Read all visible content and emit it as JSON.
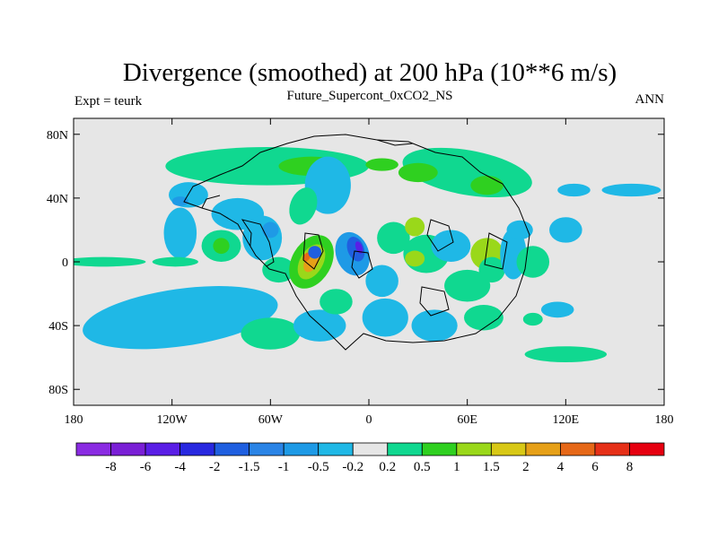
{
  "chart_data": {
    "type": "heatmap",
    "title": "Divergence (smoothed) at 200 hPa (10**6 m/s)",
    "subtitle": "Future_Supercont_0xCO2_NS",
    "left_label": "Expt = teurk",
    "right_label": "ANN",
    "xlim": [
      -180,
      180
    ],
    "ylim": [
      -90,
      90
    ],
    "x_ticks": [
      {
        "value": -180,
        "label": "180"
      },
      {
        "value": -120,
        "label": "120W"
      },
      {
        "value": -60,
        "label": "60W"
      },
      {
        "value": 0,
        "label": "0"
      },
      {
        "value": 60,
        "label": "60E"
      },
      {
        "value": 120,
        "label": "120E"
      },
      {
        "value": 180,
        "label": "180"
      }
    ],
    "y_ticks": [
      {
        "value": 80,
        "label": "80N"
      },
      {
        "value": 40,
        "label": "40N"
      },
      {
        "value": 0,
        "label": "0"
      },
      {
        "value": -40,
        "label": "40S"
      },
      {
        "value": -80,
        "label": "80S"
      }
    ],
    "colorbar": {
      "colors": [
        "#8a2be2",
        "#7a1fd6",
        "#5a1ee6",
        "#2828e0",
        "#1f5fe0",
        "#2a84e6",
        "#1e9ae6",
        "#1fb8e6",
        "#e6e6e6",
        "#10d890",
        "#2fd020",
        "#9ad81a",
        "#d8c816",
        "#e6a018",
        "#e66818",
        "#e63018",
        "#e60010"
      ],
      "labels": [
        "-8",
        "-6",
        "-4",
        "-2",
        "-1.5",
        "-1",
        "-0.5",
        "-0.2",
        "0.2",
        "0.5",
        "1",
        "1.5",
        "2",
        "4",
        "6",
        "8"
      ]
    },
    "features": [
      {
        "lon": -62,
        "lat": 60,
        "rx": 62,
        "ry": 12,
        "rot": 0,
        "level": 9
      },
      {
        "lon": -35,
        "lat": 60,
        "rx": 20,
        "ry": 6,
        "rot": 0,
        "level": 10
      },
      {
        "lon": 8,
        "lat": 61,
        "rx": 10,
        "ry": 4,
        "rot": 0,
        "level": 10
      },
      {
        "lon": 60,
        "lat": 56,
        "rx": 40,
        "ry": 14,
        "rot": 10,
        "level": 9
      },
      {
        "lon": 30,
        "lat": 56,
        "rx": 12,
        "ry": 6,
        "rot": 0,
        "level": 10
      },
      {
        "lon": 72,
        "lat": 48,
        "rx": 10,
        "ry": 6,
        "rot": 0,
        "level": 10
      },
      {
        "lon": -25,
        "lat": 48,
        "rx": 14,
        "ry": 18,
        "rot": 0,
        "level": 7
      },
      {
        "lon": -40,
        "lat": 35,
        "rx": 8,
        "ry": 12,
        "rot": 20,
        "level": 9
      },
      {
        "lon": -110,
        "lat": 42,
        "rx": 12,
        "ry": 8,
        "rot": 0,
        "level": 7
      },
      {
        "lon": -115,
        "lat": 38,
        "rx": 5,
        "ry": 3,
        "rot": 0,
        "level": 6
      },
      {
        "lon": -80,
        "lat": 30,
        "rx": 16,
        "ry": 10,
        "rot": 0,
        "level": 7
      },
      {
        "lon": -115,
        "lat": 18,
        "rx": 10,
        "ry": 16,
        "rot": 0,
        "level": 7
      },
      {
        "lon": -90,
        "lat": 10,
        "rx": 12,
        "ry": 10,
        "rot": 0,
        "level": 9
      },
      {
        "lon": -90,
        "lat": 10,
        "rx": 5,
        "ry": 5,
        "rot": 0,
        "level": 10
      },
      {
        "lon": -65,
        "lat": 15,
        "rx": 12,
        "ry": 14,
        "rot": 0,
        "level": 7
      },
      {
        "lon": -60,
        "lat": 20,
        "rx": 5,
        "ry": 5,
        "rot": 0,
        "level": 6
      },
      {
        "lon": -55,
        "lat": -5,
        "rx": 10,
        "ry": 8,
        "rot": 0,
        "level": 9
      },
      {
        "lon": -35,
        "lat": 0,
        "rx": 12,
        "ry": 18,
        "rot": 30,
        "level": 10
      },
      {
        "lon": -35,
        "lat": 0,
        "rx": 7,
        "ry": 12,
        "rot": 30,
        "level": 11
      },
      {
        "lon": -35,
        "lat": 0,
        "rx": 4,
        "ry": 7,
        "rot": 30,
        "level": 13
      },
      {
        "lon": -38,
        "lat": 3,
        "rx": 2,
        "ry": 3,
        "rot": 30,
        "level": 14
      },
      {
        "lon": -33,
        "lat": 6,
        "rx": 4,
        "ry": 4,
        "rot": 0,
        "level": 4
      },
      {
        "lon": -10,
        "lat": 5,
        "rx": 10,
        "ry": 14,
        "rot": -20,
        "level": 6
      },
      {
        "lon": -8,
        "lat": 8,
        "rx": 5,
        "ry": 8,
        "rot": -20,
        "level": 4
      },
      {
        "lon": -6,
        "lat": 9,
        "rx": 2,
        "ry": 4,
        "rot": -20,
        "level": 2
      },
      {
        "lon": 15,
        "lat": 15,
        "rx": 10,
        "ry": 10,
        "rot": 0,
        "level": 9
      },
      {
        "lon": 28,
        "lat": 22,
        "rx": 6,
        "ry": 6,
        "rot": 0,
        "level": 11
      },
      {
        "lon": 8,
        "lat": -12,
        "rx": 10,
        "ry": 10,
        "rot": 0,
        "level": 7
      },
      {
        "lon": 35,
        "lat": 5,
        "rx": 14,
        "ry": 12,
        "rot": 0,
        "level": 9
      },
      {
        "lon": 28,
        "lat": 2,
        "rx": 6,
        "ry": 5,
        "rot": 0,
        "level": 11
      },
      {
        "lon": 50,
        "lat": 10,
        "rx": 12,
        "ry": 10,
        "rot": 0,
        "level": 7
      },
      {
        "lon": 60,
        "lat": -15,
        "rx": 14,
        "ry": 10,
        "rot": 0,
        "level": 9
      },
      {
        "lon": 72,
        "lat": 5,
        "rx": 10,
        "ry": 10,
        "rot": 0,
        "level": 11
      },
      {
        "lon": 75,
        "lat": -5,
        "rx": 8,
        "ry": 8,
        "rot": 0,
        "level": 9
      },
      {
        "lon": 88,
        "lat": 5,
        "rx": 8,
        "ry": 16,
        "rot": 0,
        "level": 7
      },
      {
        "lon": 100,
        "lat": 0,
        "rx": 10,
        "ry": 10,
        "rot": 0,
        "level": 9
      },
      {
        "lon": 92,
        "lat": 20,
        "rx": 8,
        "ry": 6,
        "rot": 0,
        "level": 7
      },
      {
        "lon": 120,
        "lat": 20,
        "rx": 10,
        "ry": 8,
        "rot": 0,
        "level": 7
      },
      {
        "lon": 125,
        "lat": 45,
        "rx": 10,
        "ry": 4,
        "rot": 0,
        "level": 7
      },
      {
        "lon": -162,
        "lat": 0,
        "rx": 26,
        "ry": 3,
        "rot": 0,
        "level": 9
      },
      {
        "lon": -118,
        "lat": 0,
        "rx": 14,
        "ry": 3,
        "rot": 0,
        "level": 9
      },
      {
        "lon": 100,
        "lat": -36,
        "rx": 6,
        "ry": 4,
        "rot": 0,
        "level": 9
      },
      {
        "lon": 115,
        "lat": -30,
        "rx": 10,
        "ry": 5,
        "rot": 0,
        "level": 7
      },
      {
        "lon": -115,
        "lat": -35,
        "rx": 60,
        "ry": 18,
        "rot": -8,
        "level": 7
      },
      {
        "lon": -60,
        "lat": -45,
        "rx": 18,
        "ry": 10,
        "rot": 0,
        "level": 9
      },
      {
        "lon": -30,
        "lat": -40,
        "rx": 16,
        "ry": 10,
        "rot": 0,
        "level": 7
      },
      {
        "lon": 10,
        "lat": -35,
        "rx": 14,
        "ry": 12,
        "rot": 0,
        "level": 7
      },
      {
        "lon": -20,
        "lat": -25,
        "rx": 10,
        "ry": 8,
        "rot": 0,
        "level": 9
      },
      {
        "lon": 40,
        "lat": -40,
        "rx": 14,
        "ry": 10,
        "rot": 0,
        "level": 7
      },
      {
        "lon": 70,
        "lat": -35,
        "rx": 12,
        "ry": 8,
        "rot": 0,
        "level": 9
      },
      {
        "lon": 120,
        "lat": -58,
        "rx": 25,
        "ry": 5,
        "rot": 0,
        "level": 9
      },
      {
        "lon": 160,
        "lat": 45,
        "rx": 18,
        "ry": 4,
        "rot": 0,
        "level": 7
      }
    ]
  }
}
